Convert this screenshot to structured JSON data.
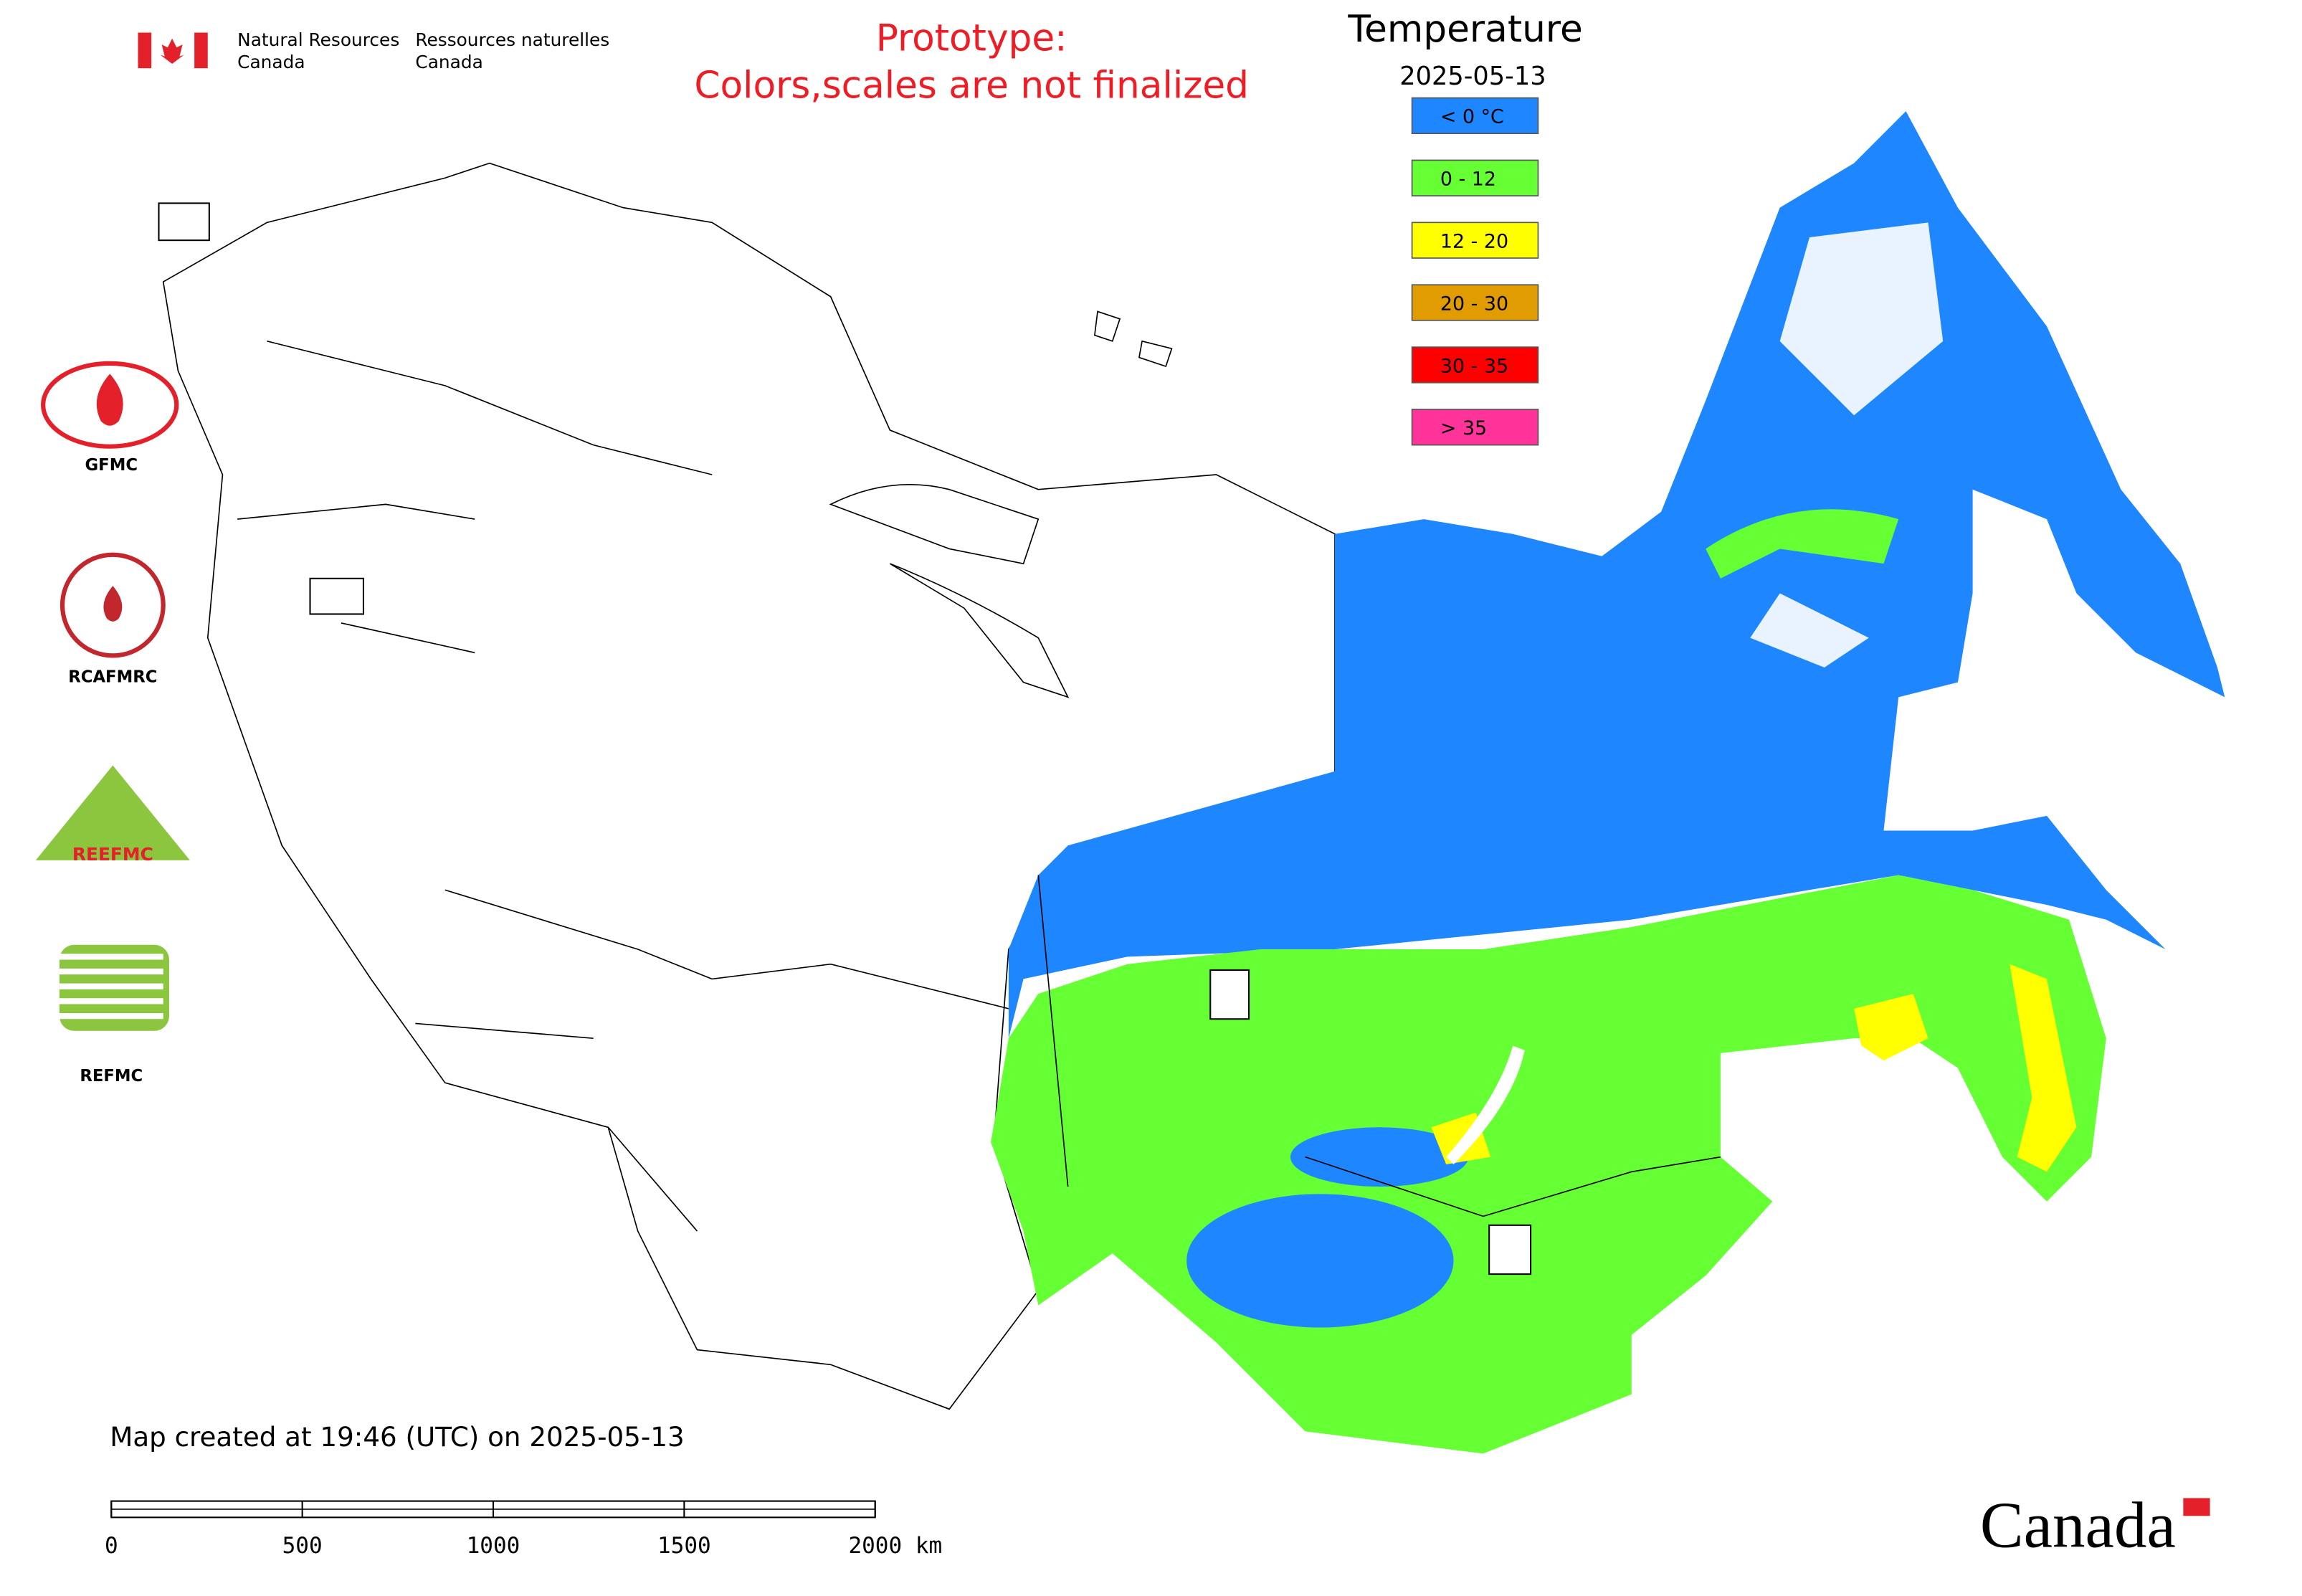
{
  "header": {
    "agency_en": [
      "Natural Resources",
      "Canada"
    ],
    "agency_fr": [
      "Ressources naturelles",
      "Canada"
    ],
    "notice": [
      "Prototype:",
      "Colors,scales are not finalized"
    ]
  },
  "legend": {
    "title": "Temperature",
    "date": "2025-05-13",
    "items": [
      {
        "label": "< 0 °C",
        "color": "#1e86ff"
      },
      {
        "label": "0 - 12",
        "color": "#66ff33"
      },
      {
        "label": "12 - 20",
        "color": "#ffff00"
      },
      {
        "label": "20 - 30",
        "color": "#e09c00"
      },
      {
        "label": "30 - 35",
        "color": "#ff0000"
      },
      {
        "label": "> 35",
        "color": "#ff3399"
      }
    ]
  },
  "logos": [
    "GFMC",
    "RCAFMRC",
    "REEFMC",
    "REFMC"
  ],
  "footer": {
    "created": "Map created at 19:46 (UTC) on 2025-05-13",
    "scale_ticks": [
      0,
      500,
      1000,
      1500,
      {
        "value": 2000,
        "label": "2000 km"
      }
    ]
  },
  "wordmark": "Canada"
}
